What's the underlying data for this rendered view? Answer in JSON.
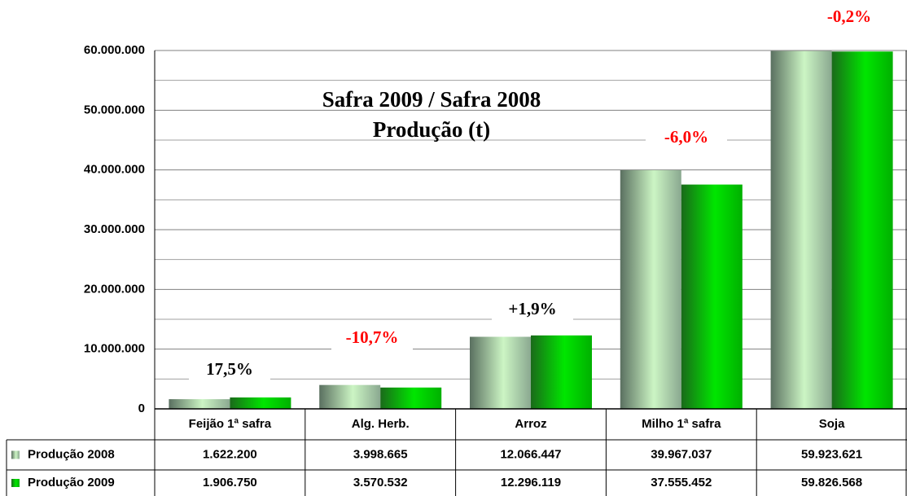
{
  "chart_data": {
    "type": "bar",
    "title": [
      "Safra 2009 / Safra 2008",
      "Produção (t)"
    ],
    "categories": [
      "Feijão 1ª safra",
      "Alg. Herb.",
      "Arroz",
      "Milho 1ª safra",
      "Soja"
    ],
    "series": [
      {
        "name": "Produção 2008",
        "color": "#ccf5c4",
        "values": [
          1622200,
          3998665,
          12066447,
          39967037,
          59923621
        ],
        "value_labels": [
          "1.622.200",
          "3.998.665",
          "12.066.447",
          "39.967.037",
          "59.923.621"
        ]
      },
      {
        "name": "Produção 2009",
        "color": "#00e600",
        "values": [
          1906750,
          3570532,
          12296119,
          37555452,
          59826568
        ],
        "value_labels": [
          "1.906.750",
          "3.570.532",
          "12.296.119",
          "37.555.452",
          "59.826.568"
        ]
      }
    ],
    "annotations": [
      {
        "text": "17,5%",
        "color": "#000000"
      },
      {
        "text": "-10,7%",
        "color": "#ff0000"
      },
      {
        "text": "+1,9%",
        "color": "#000000"
      },
      {
        "text": "-6,0%",
        "color": "#ff0000"
      },
      {
        "text": "-0,2%",
        "color": "#ff0000"
      }
    ],
    "ylim": [
      0,
      60000000
    ],
    "yticks": [
      0,
      {
        "value": 10000000,
        "label": "10.000.000"
      },
      {
        "value": 20000000,
        "label": "20.000.000"
      },
      {
        "value": 30000000,
        "label": "30.000.000"
      },
      {
        "value": 40000000,
        "label": "40.000.000"
      },
      {
        "value": 50000000,
        "label": "50.000.000"
      },
      {
        "value": 60000000,
        "label": "60.000.000"
      }
    ],
    "yminor_ticks": [
      5000000,
      15000000,
      25000000,
      35000000,
      45000000,
      55000000
    ],
    "grid": true,
    "data_table": true
  }
}
